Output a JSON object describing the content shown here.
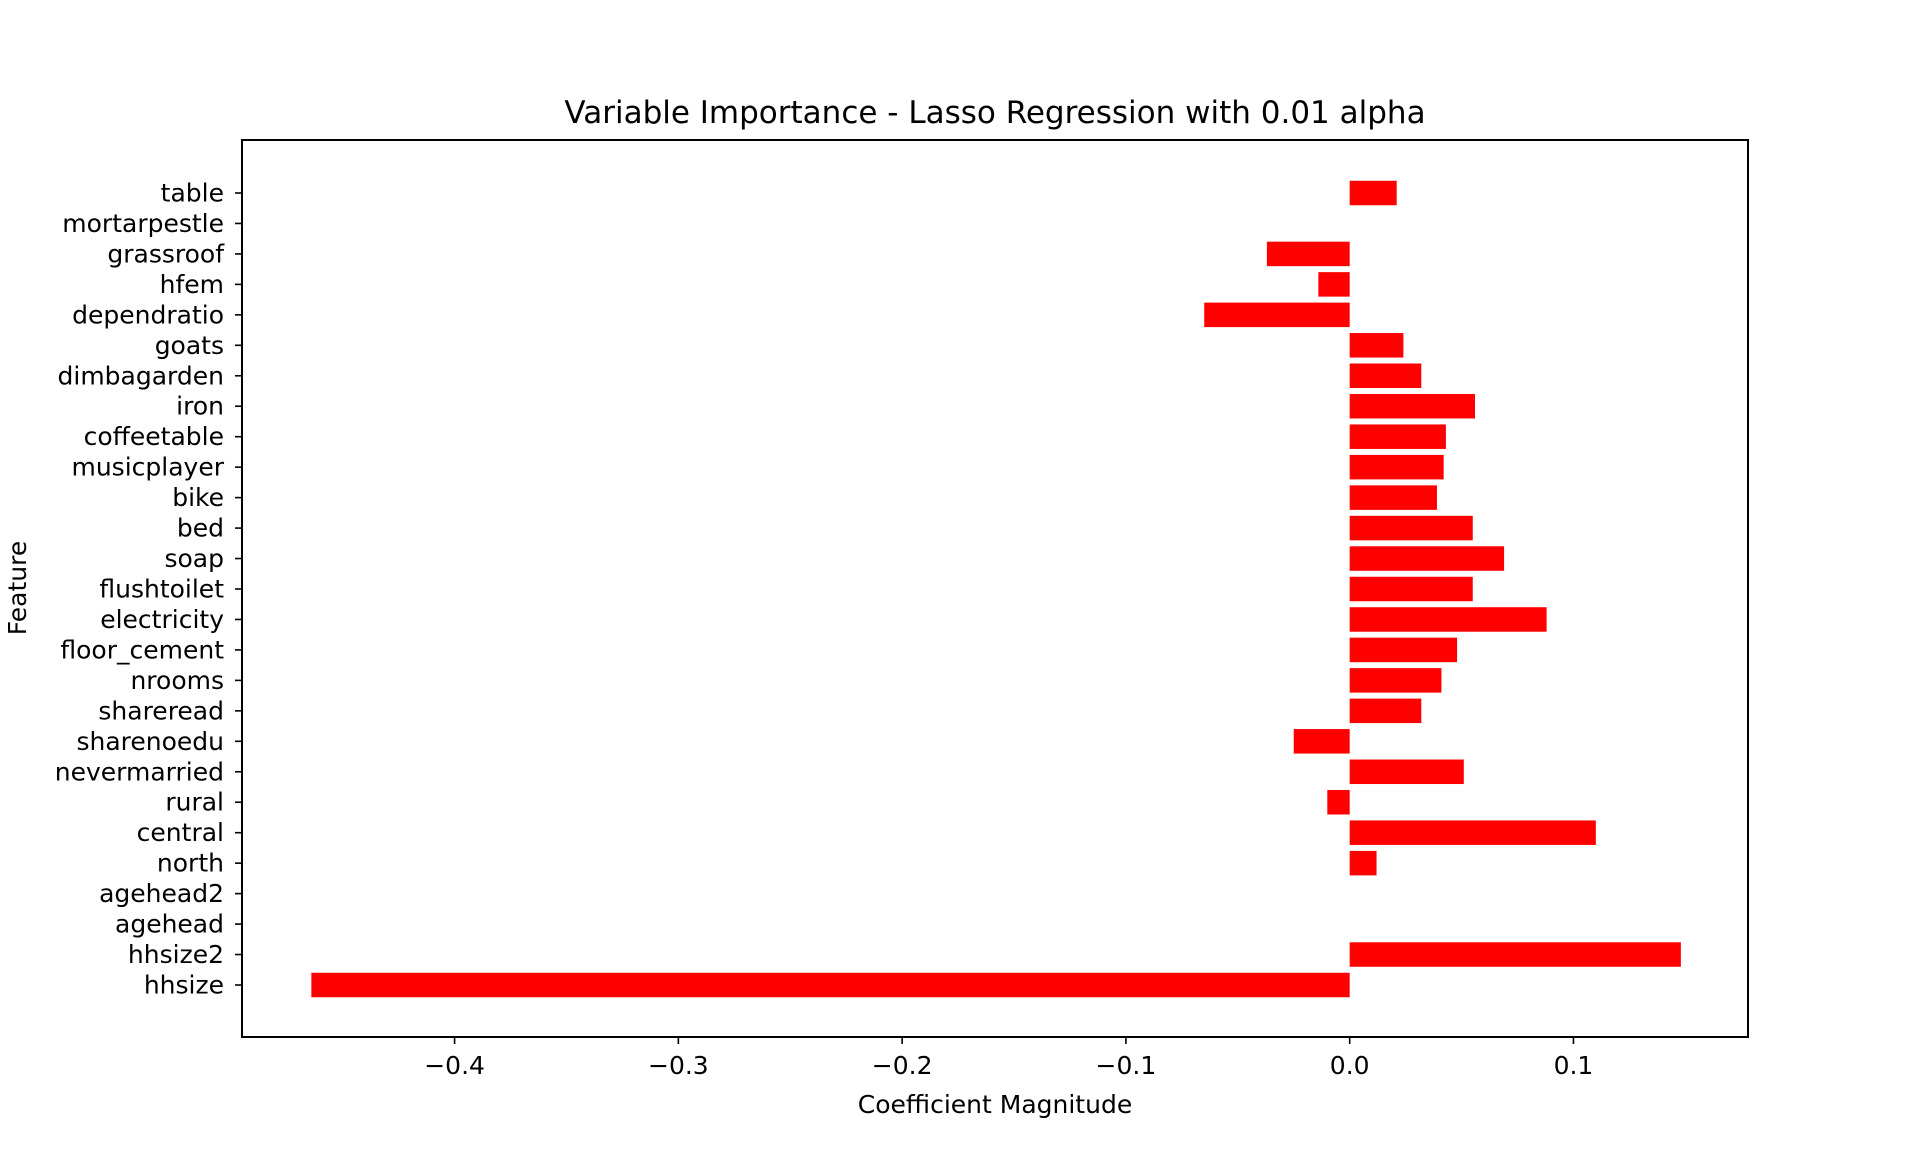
{
  "chart_data": {
    "type": "bar",
    "orientation": "horizontal",
    "title": "Variable Importance - Lasso Regression with 0.01 alpha",
    "xlabel": "Coefficient Magnitude",
    "ylabel": "Feature",
    "xlim": [
      -0.495,
      0.178
    ],
    "xticks": [
      -0.4,
      -0.3,
      -0.2,
      -0.1,
      0.0,
      0.1
    ],
    "xtick_labels": [
      "−0.4",
      "−0.3",
      "−0.2",
      "−0.1",
      "0.0",
      "0.1"
    ],
    "grid": false,
    "bar_color": "#ff0000",
    "categories": [
      "hhsize",
      "hhsize2",
      "agehead",
      "agehead2",
      "north",
      "central",
      "rural",
      "nevermarried",
      "sharenoedu",
      "shareread",
      "nrooms",
      "floor_cement",
      "electricity",
      "flushtoilet",
      "soap",
      "bed",
      "bike",
      "musicplayer",
      "coffeetable",
      "iron",
      "dimbagarden",
      "goats",
      "dependratio",
      "hfem",
      "grassroof",
      "mortarpestle",
      "table"
    ],
    "values": [
      -0.464,
      0.148,
      0.0,
      0.0,
      0.012,
      0.11,
      -0.01,
      0.051,
      -0.025,
      0.032,
      0.041,
      0.048,
      0.088,
      0.055,
      0.069,
      0.055,
      0.039,
      0.042,
      0.043,
      0.056,
      0.032,
      0.024,
      -0.065,
      -0.014,
      -0.037,
      0.0,
      0.021
    ]
  }
}
